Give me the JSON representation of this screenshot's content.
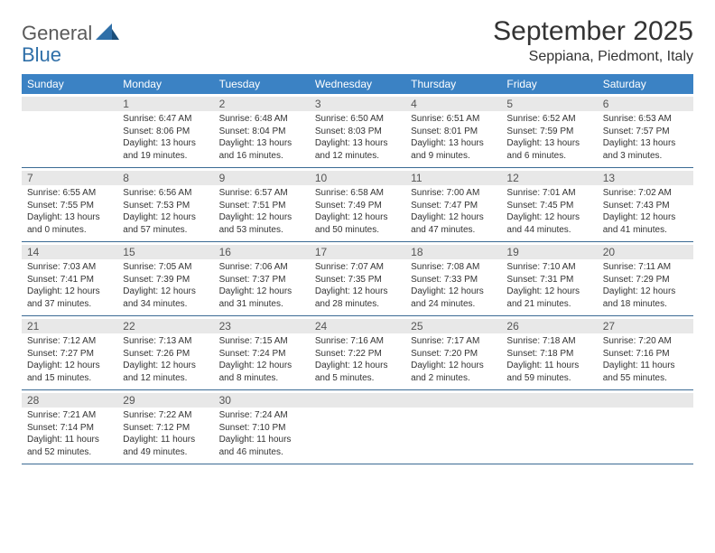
{
  "logo": {
    "part1": "General",
    "part2": "Blue"
  },
  "title": "September 2025",
  "location": "Seppiana, Piedmont, Italy",
  "colors": {
    "header_bg": "#3b82c4",
    "header_text": "#ffffff",
    "daynum_bg": "#e8e8e8",
    "border": "#3b6a94",
    "logo_gray": "#5a5a5a",
    "logo_blue": "#2f6fa8"
  },
  "weekdays": [
    "Sunday",
    "Monday",
    "Tuesday",
    "Wednesday",
    "Thursday",
    "Friday",
    "Saturday"
  ],
  "weeks": [
    [
      {
        "n": "",
        "sr": "",
        "ss": "",
        "dl": ""
      },
      {
        "n": "1",
        "sr": "Sunrise: 6:47 AM",
        "ss": "Sunset: 8:06 PM",
        "dl": "Daylight: 13 hours and 19 minutes."
      },
      {
        "n": "2",
        "sr": "Sunrise: 6:48 AM",
        "ss": "Sunset: 8:04 PM",
        "dl": "Daylight: 13 hours and 16 minutes."
      },
      {
        "n": "3",
        "sr": "Sunrise: 6:50 AM",
        "ss": "Sunset: 8:03 PM",
        "dl": "Daylight: 13 hours and 12 minutes."
      },
      {
        "n": "4",
        "sr": "Sunrise: 6:51 AM",
        "ss": "Sunset: 8:01 PM",
        "dl": "Daylight: 13 hours and 9 minutes."
      },
      {
        "n": "5",
        "sr": "Sunrise: 6:52 AM",
        "ss": "Sunset: 7:59 PM",
        "dl": "Daylight: 13 hours and 6 minutes."
      },
      {
        "n": "6",
        "sr": "Sunrise: 6:53 AM",
        "ss": "Sunset: 7:57 PM",
        "dl": "Daylight: 13 hours and 3 minutes."
      }
    ],
    [
      {
        "n": "7",
        "sr": "Sunrise: 6:55 AM",
        "ss": "Sunset: 7:55 PM",
        "dl": "Daylight: 13 hours and 0 minutes."
      },
      {
        "n": "8",
        "sr": "Sunrise: 6:56 AM",
        "ss": "Sunset: 7:53 PM",
        "dl": "Daylight: 12 hours and 57 minutes."
      },
      {
        "n": "9",
        "sr": "Sunrise: 6:57 AM",
        "ss": "Sunset: 7:51 PM",
        "dl": "Daylight: 12 hours and 53 minutes."
      },
      {
        "n": "10",
        "sr": "Sunrise: 6:58 AM",
        "ss": "Sunset: 7:49 PM",
        "dl": "Daylight: 12 hours and 50 minutes."
      },
      {
        "n": "11",
        "sr": "Sunrise: 7:00 AM",
        "ss": "Sunset: 7:47 PM",
        "dl": "Daylight: 12 hours and 47 minutes."
      },
      {
        "n": "12",
        "sr": "Sunrise: 7:01 AM",
        "ss": "Sunset: 7:45 PM",
        "dl": "Daylight: 12 hours and 44 minutes."
      },
      {
        "n": "13",
        "sr": "Sunrise: 7:02 AM",
        "ss": "Sunset: 7:43 PM",
        "dl": "Daylight: 12 hours and 41 minutes."
      }
    ],
    [
      {
        "n": "14",
        "sr": "Sunrise: 7:03 AM",
        "ss": "Sunset: 7:41 PM",
        "dl": "Daylight: 12 hours and 37 minutes."
      },
      {
        "n": "15",
        "sr": "Sunrise: 7:05 AM",
        "ss": "Sunset: 7:39 PM",
        "dl": "Daylight: 12 hours and 34 minutes."
      },
      {
        "n": "16",
        "sr": "Sunrise: 7:06 AM",
        "ss": "Sunset: 7:37 PM",
        "dl": "Daylight: 12 hours and 31 minutes."
      },
      {
        "n": "17",
        "sr": "Sunrise: 7:07 AM",
        "ss": "Sunset: 7:35 PM",
        "dl": "Daylight: 12 hours and 28 minutes."
      },
      {
        "n": "18",
        "sr": "Sunrise: 7:08 AM",
        "ss": "Sunset: 7:33 PM",
        "dl": "Daylight: 12 hours and 24 minutes."
      },
      {
        "n": "19",
        "sr": "Sunrise: 7:10 AM",
        "ss": "Sunset: 7:31 PM",
        "dl": "Daylight: 12 hours and 21 minutes."
      },
      {
        "n": "20",
        "sr": "Sunrise: 7:11 AM",
        "ss": "Sunset: 7:29 PM",
        "dl": "Daylight: 12 hours and 18 minutes."
      }
    ],
    [
      {
        "n": "21",
        "sr": "Sunrise: 7:12 AM",
        "ss": "Sunset: 7:27 PM",
        "dl": "Daylight: 12 hours and 15 minutes."
      },
      {
        "n": "22",
        "sr": "Sunrise: 7:13 AM",
        "ss": "Sunset: 7:26 PM",
        "dl": "Daylight: 12 hours and 12 minutes."
      },
      {
        "n": "23",
        "sr": "Sunrise: 7:15 AM",
        "ss": "Sunset: 7:24 PM",
        "dl": "Daylight: 12 hours and 8 minutes."
      },
      {
        "n": "24",
        "sr": "Sunrise: 7:16 AM",
        "ss": "Sunset: 7:22 PM",
        "dl": "Daylight: 12 hours and 5 minutes."
      },
      {
        "n": "25",
        "sr": "Sunrise: 7:17 AM",
        "ss": "Sunset: 7:20 PM",
        "dl": "Daylight: 12 hours and 2 minutes."
      },
      {
        "n": "26",
        "sr": "Sunrise: 7:18 AM",
        "ss": "Sunset: 7:18 PM",
        "dl": "Daylight: 11 hours and 59 minutes."
      },
      {
        "n": "27",
        "sr": "Sunrise: 7:20 AM",
        "ss": "Sunset: 7:16 PM",
        "dl": "Daylight: 11 hours and 55 minutes."
      }
    ],
    [
      {
        "n": "28",
        "sr": "Sunrise: 7:21 AM",
        "ss": "Sunset: 7:14 PM",
        "dl": "Daylight: 11 hours and 52 minutes."
      },
      {
        "n": "29",
        "sr": "Sunrise: 7:22 AM",
        "ss": "Sunset: 7:12 PM",
        "dl": "Daylight: 11 hours and 49 minutes."
      },
      {
        "n": "30",
        "sr": "Sunrise: 7:24 AM",
        "ss": "Sunset: 7:10 PM",
        "dl": "Daylight: 11 hours and 46 minutes."
      },
      {
        "n": "",
        "sr": "",
        "ss": "",
        "dl": ""
      },
      {
        "n": "",
        "sr": "",
        "ss": "",
        "dl": ""
      },
      {
        "n": "",
        "sr": "",
        "ss": "",
        "dl": ""
      },
      {
        "n": "",
        "sr": "",
        "ss": "",
        "dl": ""
      }
    ]
  ]
}
